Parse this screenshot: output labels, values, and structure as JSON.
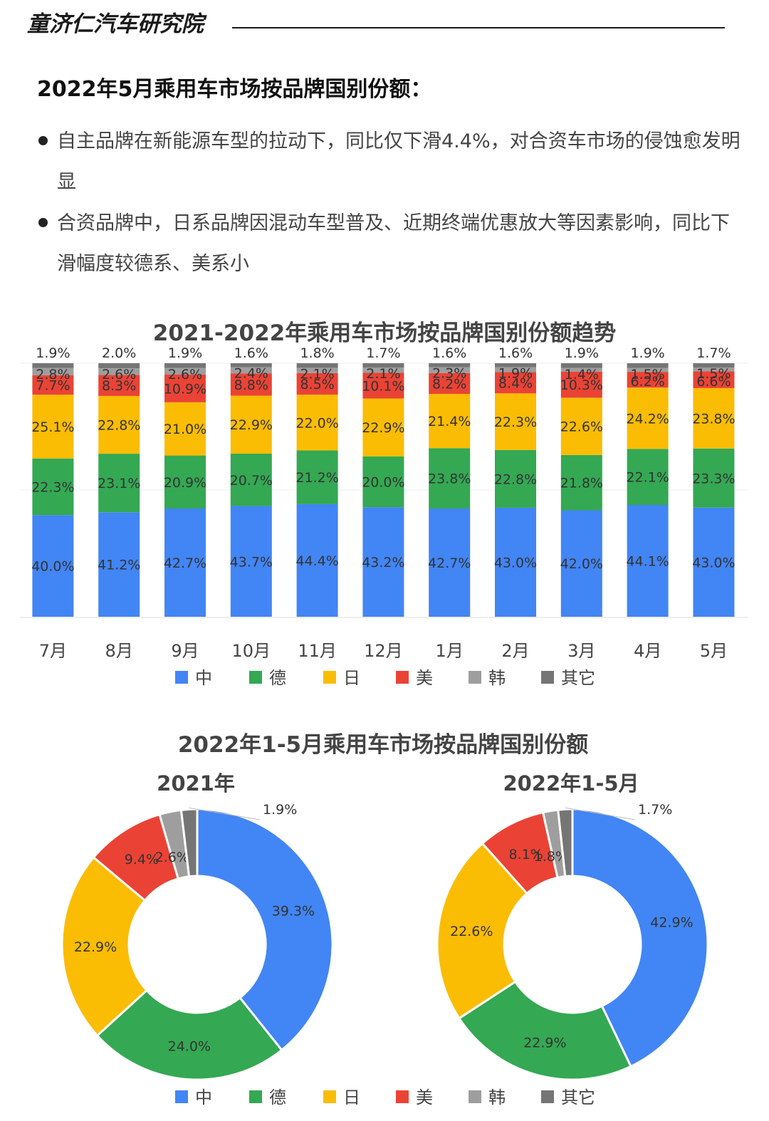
{
  "header": {
    "brand": "童济仁汽车研究院"
  },
  "page_title": "2022年5月乘用车市场按品牌国别份额：",
  "bullets": [
    "自主品牌在新能源车型的拉动下，同比仅下滑4.4%，对合资车市场的侵蚀愈发明显",
    "合资品牌中，日系品牌因混动车型普及、近期终端优惠放大等因素影响，同比下滑幅度较德系、美系小"
  ],
  "colors": {
    "中": "#4285F4",
    "德": "#34A853",
    "日": "#FBBC04",
    "美": "#EA4335",
    "韩": "#9E9E9E",
    "其它": "#757575"
  },
  "chart_data": [
    {
      "type": "bar",
      "stacked": true,
      "title": "2021-2022年乘用车市场按品牌国别份额趋势",
      "categories": [
        "7月",
        "8月",
        "9月",
        "10月",
        "11月",
        "12月",
        "1月",
        "2月",
        "3月",
        "4月",
        "5月"
      ],
      "series": [
        {
          "name": "中",
          "values": [
            40.0,
            41.2,
            42.7,
            43.7,
            44.4,
            43.2,
            42.7,
            43.0,
            42.0,
            44.1,
            43.0
          ]
        },
        {
          "name": "德",
          "values": [
            22.3,
            23.1,
            20.9,
            20.7,
            21.2,
            20.0,
            23.8,
            22.8,
            21.8,
            22.1,
            23.3
          ]
        },
        {
          "name": "日",
          "values": [
            25.1,
            22.8,
            21.0,
            22.9,
            22.0,
            22.9,
            21.4,
            22.3,
            22.6,
            24.2,
            23.8
          ]
        },
        {
          "name": "美",
          "values": [
            7.7,
            8.3,
            10.9,
            8.8,
            8.5,
            10.1,
            8.2,
            8.4,
            10.3,
            6.2,
            6.6
          ]
        },
        {
          "name": "韩",
          "values": [
            2.8,
            2.6,
            2.6,
            2.4,
            2.1,
            2.1,
            2.3,
            1.9,
            1.4,
            1.5,
            1.5
          ]
        },
        {
          "name": "其它",
          "values": [
            1.9,
            2.0,
            1.9,
            1.6,
            1.8,
            1.7,
            1.6,
            1.6,
            1.9,
            1.9,
            1.7
          ]
        }
      ],
      "legend": "bottom"
    },
    {
      "type": "pie",
      "donut": true,
      "title": "2022年1-5月乘用车市场按品牌国别份额",
      "subcharts": [
        {
          "title": "2021年",
          "labels": [
            "中",
            "德",
            "日",
            "美",
            "韩",
            "其它"
          ],
          "values": [
            39.3,
            24.0,
            22.9,
            9.4,
            2.6,
            1.9
          ]
        },
        {
          "title": "2022年1-5月",
          "labels": [
            "中",
            "德",
            "日",
            "美",
            "韩",
            "其它"
          ],
          "values": [
            42.9,
            22.9,
            22.6,
            8.1,
            1.8,
            1.7
          ]
        }
      ],
      "legend": "bottom"
    }
  ]
}
